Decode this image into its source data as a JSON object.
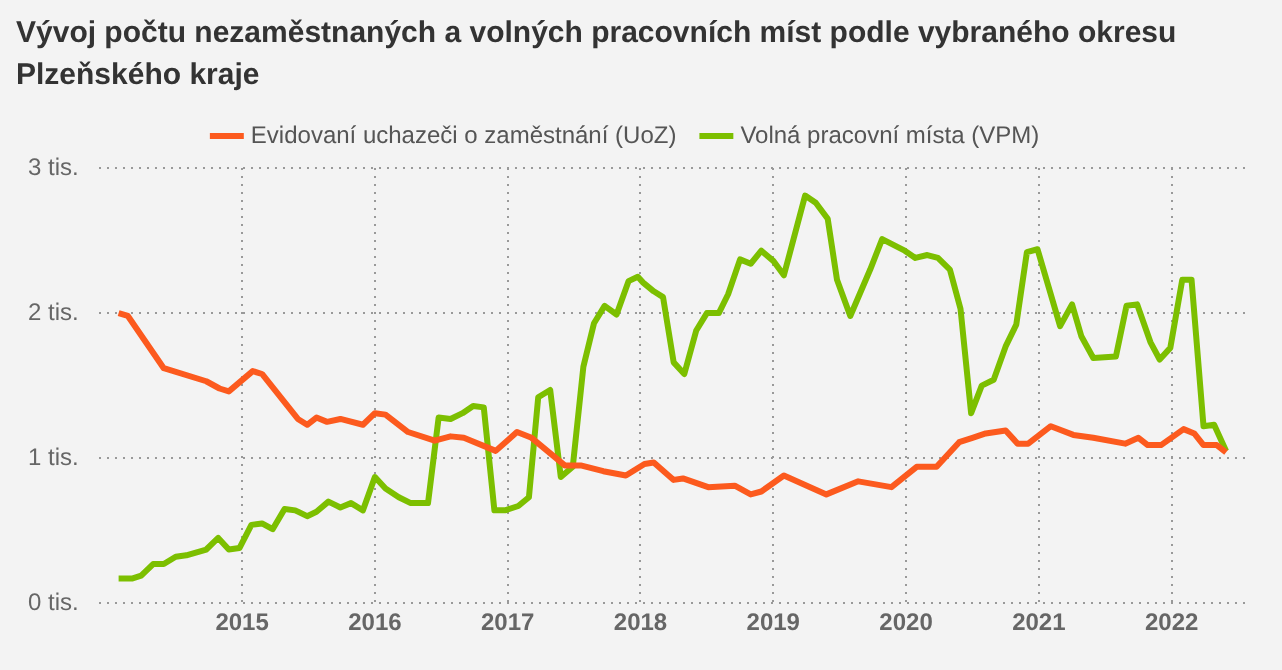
{
  "chart_data": {
    "type": "line",
    "title": "Vývoj počtu nezaměstnaných a volných pracovních míst podle vybraného okresu Plzeňského kraje",
    "xlim": [
      2013.92,
      2022.56
    ],
    "xticks": [
      2015,
      2016,
      2017,
      2018,
      2019,
      2020,
      2021,
      2022
    ],
    "ylim": [
      0,
      3
    ],
    "yticks": [
      {
        "value": 0,
        "label": "0 tis."
      },
      {
        "value": 1,
        "label": "1 tis."
      },
      {
        "value": 2,
        "label": "2 tis."
      },
      {
        "value": 3,
        "label": "3 tis."
      }
    ],
    "grid": true,
    "legend": "top",
    "marker": "none",
    "line_style": "solid",
    "series": [
      {
        "name": "Evidovaní uchazeči o zaměstnání (UoZ)",
        "color": "#fc5a1e",
        "x": [
          2014.07,
          2014.14,
          2014.41,
          2014.73,
          2014.83,
          2014.9,
          2015.08,
          2015.15,
          2015.42,
          2015.49,
          2015.56,
          2015.64,
          2015.74,
          2015.91,
          2016.0,
          2016.08,
          2016.25,
          2016.45,
          2016.57,
          2016.67,
          2016.91,
          2017.07,
          2017.18,
          2017.43,
          2017.55,
          2017.72,
          2017.89,
          2018.03,
          2018.1,
          2018.25,
          2018.32,
          2018.51,
          2018.71,
          2018.83,
          2018.91,
          2019.08,
          2019.4,
          2019.64,
          2019.89,
          2020.08,
          2020.23,
          2020.4,
          2020.5,
          2020.6,
          2020.75,
          2020.84,
          2020.92,
          2021.09,
          2021.26,
          2021.41,
          2021.65,
          2021.75,
          2021.82,
          2021.92,
          2022.09,
          2022.17,
          2022.24,
          2022.34,
          2022.41
        ],
        "values": [
          2.0,
          1.98,
          1.62,
          1.53,
          1.48,
          1.46,
          1.6,
          1.58,
          1.27,
          1.23,
          1.28,
          1.25,
          1.27,
          1.23,
          1.31,
          1.3,
          1.18,
          1.12,
          1.15,
          1.14,
          1.05,
          1.18,
          1.14,
          0.95,
          0.95,
          0.91,
          0.88,
          0.96,
          0.97,
          0.85,
          0.86,
          0.8,
          0.81,
          0.75,
          0.77,
          0.88,
          0.75,
          0.84,
          0.8,
          0.94,
          0.94,
          1.11,
          1.14,
          1.17,
          1.19,
          1.1,
          1.1,
          1.22,
          1.16,
          1.14,
          1.1,
          1.14,
          1.09,
          1.09,
          1.2,
          1.17,
          1.09,
          1.09,
          1.04
        ]
      },
      {
        "name": "Volná pracovní místa (VPM)",
        "color": "#7cbf00",
        "x": [
          2014.07,
          2014.17,
          2014.24,
          2014.33,
          2014.41,
          2014.5,
          2014.58,
          2014.73,
          2014.82,
          2014.9,
          2014.98,
          2015.07,
          2015.15,
          2015.23,
          2015.32,
          2015.4,
          2015.49,
          2015.56,
          2015.65,
          2015.74,
          2015.82,
          2015.91,
          2016.0,
          2016.08,
          2016.18,
          2016.27,
          2016.4,
          2016.48,
          2016.57,
          2016.66,
          2016.74,
          2016.82,
          2016.9,
          2016.98,
          2017.08,
          2017.16,
          2017.23,
          2017.32,
          2017.4,
          2017.49,
          2017.57,
          2017.65,
          2017.73,
          2017.82,
          2017.91,
          2017.98,
          2018.02,
          2018.1,
          2018.17,
          2018.25,
          2018.33,
          2018.42,
          2018.5,
          2018.59,
          2018.66,
          2018.75,
          2018.83,
          2018.91,
          2019.0,
          2019.08,
          2019.24,
          2019.32,
          2019.41,
          2019.48,
          2019.58,
          2019.73,
          2019.82,
          2019.99,
          2020.07,
          2020.16,
          2020.24,
          2020.33,
          2020.41,
          2020.49,
          2020.57,
          2020.66,
          2020.75,
          2020.83,
          2020.91,
          2020.99,
          2021.08,
          2021.16,
          2021.25,
          2021.32,
          2021.41,
          2021.58,
          2021.66,
          2021.74,
          2021.84,
          2021.91,
          2021.99,
          2022.08,
          2022.15,
          2022.24,
          2022.32,
          2022.41
        ],
        "values": [
          0.17,
          0.17,
          0.19,
          0.27,
          0.27,
          0.32,
          0.33,
          0.37,
          0.45,
          0.37,
          0.38,
          0.54,
          0.55,
          0.51,
          0.65,
          0.64,
          0.6,
          0.63,
          0.7,
          0.66,
          0.69,
          0.64,
          0.87,
          0.79,
          0.73,
          0.69,
          0.69,
          1.28,
          1.27,
          1.31,
          1.36,
          1.35,
          0.64,
          0.64,
          0.67,
          0.73,
          1.42,
          1.47,
          0.87,
          0.94,
          1.63,
          1.93,
          2.05,
          1.99,
          2.22,
          2.25,
          2.21,
          2.15,
          2.11,
          1.66,
          1.58,
          1.88,
          2.0,
          2.0,
          2.13,
          2.37,
          2.34,
          2.43,
          2.36,
          2.26,
          2.81,
          2.76,
          2.65,
          2.23,
          1.98,
          2.3,
          2.51,
          2.43,
          2.38,
          2.4,
          2.38,
          2.3,
          2.03,
          1.31,
          1.5,
          1.54,
          1.77,
          1.92,
          2.42,
          2.44,
          2.16,
          1.91,
          2.06,
          1.84,
          1.69,
          1.7,
          2.05,
          2.06,
          1.8,
          1.68,
          1.76,
          2.23,
          2.23,
          1.22,
          1.23,
          1.05
        ]
      }
    ]
  }
}
